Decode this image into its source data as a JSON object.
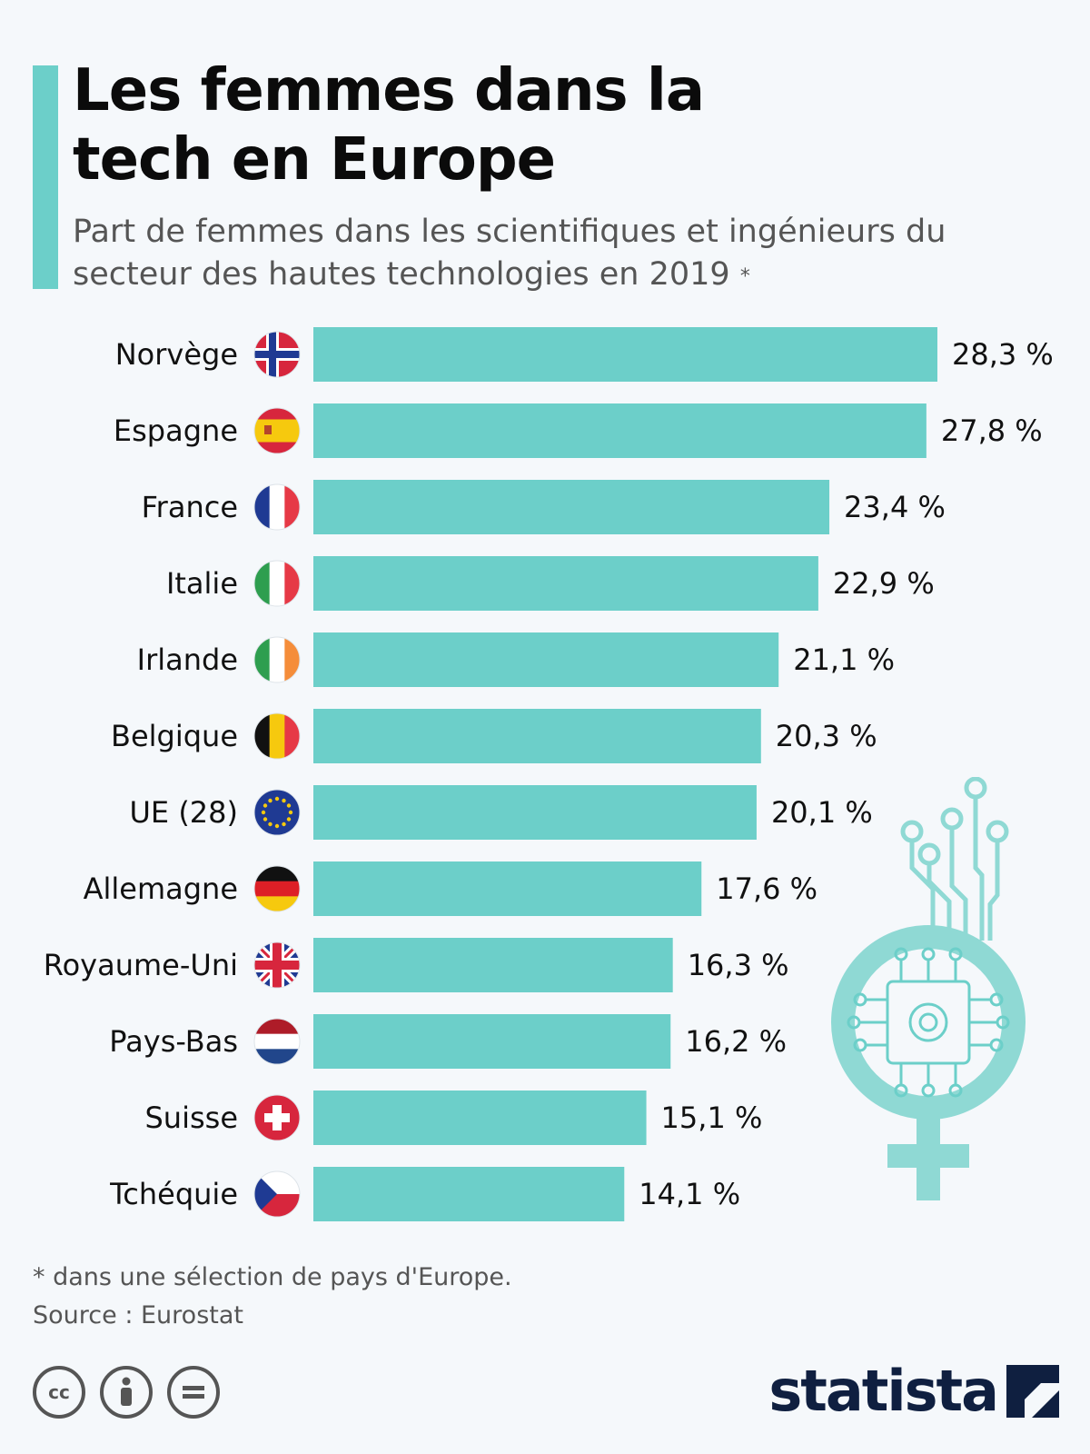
{
  "title": "Les femmes dans la tech en Europe",
  "subtitle": "Part de femmes dans les scientifiques et ingénieurs du secteur des hautes technologies en 2019",
  "subtitle_mark": "*",
  "footnote": "* dans une sélection de pays d'Europe.",
  "source": "Source : Eurostat",
  "brand": "statista",
  "colors": {
    "accent": "#6ccfc9",
    "bar": "#6ccfc9",
    "text": "#111111",
    "muted": "#555555",
    "brand": "#0f1f40"
  },
  "license_icons": [
    "cc-icon",
    "by-icon",
    "nd-icon"
  ],
  "chart_data": {
    "type": "bar",
    "orientation": "horizontal",
    "unit": "%",
    "xlim": [
      0,
      28.3
    ],
    "categories": [
      "Norvège",
      "Espagne",
      "France",
      "Italie",
      "Irlande",
      "Belgique",
      "UE (28)",
      "Allemagne",
      "Royaume-Uni",
      "Pays-Bas",
      "Suisse",
      "Tchéquie"
    ],
    "values": [
      28.3,
      27.8,
      23.4,
      22.9,
      21.1,
      20.3,
      20.1,
      17.6,
      16.3,
      16.2,
      15.1,
      14.1
    ],
    "labels": [
      "28,3 %",
      "27,8 %",
      "23,4 %",
      "22,9 %",
      "21,1 %",
      "20,3 %",
      "20,1 %",
      "17,6 %",
      "16,3 %",
      "16,2 %",
      "15,1 %",
      "14,1 %"
    ],
    "flags": [
      "flag-norway-icon",
      "flag-spain-icon",
      "flag-france-icon",
      "flag-italy-icon",
      "flag-ireland-icon",
      "flag-belgium-icon",
      "flag-eu-icon",
      "flag-germany-icon",
      "flag-uk-icon",
      "flag-netherlands-icon",
      "flag-switzerland-icon",
      "flag-czechia-icon"
    ],
    "grid": false,
    "legend": "none"
  }
}
